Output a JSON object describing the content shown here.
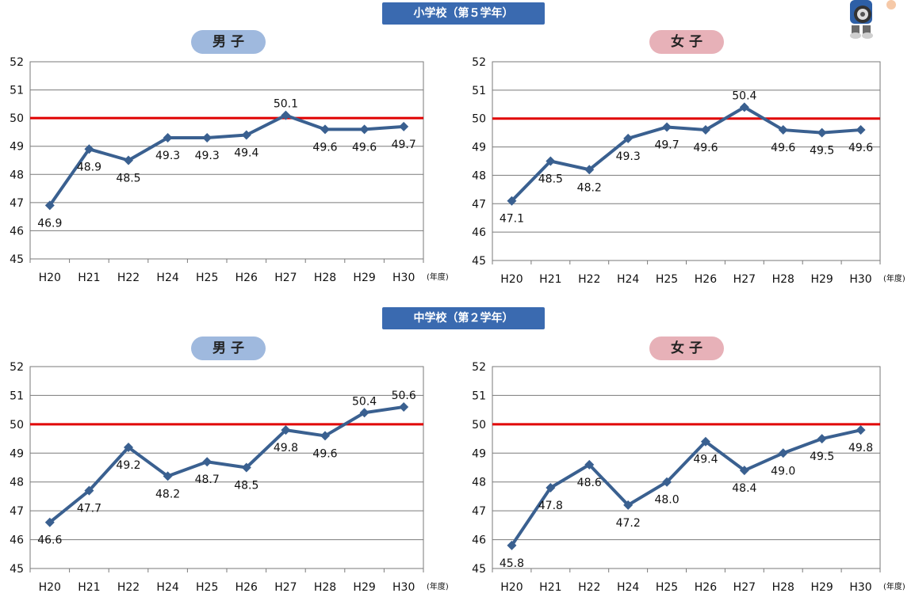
{
  "sections": [
    {
      "label": "小学校（第５学年）"
    },
    {
      "label": "中学校（第２学年）"
    }
  ],
  "gender_labels": {
    "boys": "男 子",
    "girls": "女 子"
  },
  "year_unit_label": "(年度)",
  "colors": {
    "line": "#3a6090",
    "reference_line": "#e00000",
    "grid": "#7a7a7a",
    "badge": "#3a6ab0",
    "boys_pill": "#9fb9de",
    "girls_pill": "#e7b1b8"
  },
  "chart_data": [
    {
      "type": "line",
      "section": "小学校（第５学年）",
      "gender": "男 子",
      "categories": [
        "H20",
        "H21",
        "H22",
        "H24",
        "H25",
        "H26",
        "H27",
        "H28",
        "H29",
        "H30"
      ],
      "values": [
        46.9,
        48.9,
        48.5,
        49.3,
        49.3,
        49.4,
        50.1,
        49.6,
        49.6,
        49.7
      ],
      "value_labels": [
        "46.9",
        "48.9",
        "48.5",
        "49.3",
        "49.3",
        "49.4",
        "50.1",
        "49.6",
        "49.6",
        "49.7"
      ],
      "ylim": [
        45,
        52
      ],
      "yticks": [
        "45",
        "46",
        "47",
        "48",
        "49",
        "50",
        "51",
        "52"
      ],
      "reference_value": 50,
      "grid": true
    },
    {
      "type": "line",
      "section": "小学校（第５学年）",
      "gender": "女 子",
      "categories": [
        "H20",
        "H21",
        "H22",
        "H24",
        "H25",
        "H26",
        "H27",
        "H28",
        "H29",
        "H30"
      ],
      "values": [
        47.1,
        48.5,
        48.2,
        49.3,
        49.7,
        49.6,
        50.4,
        49.6,
        49.5,
        49.6
      ],
      "value_labels": [
        "47.1",
        "48.5",
        "48.2",
        "49.3",
        "49.7",
        "49.6",
        "50.4",
        "49.6",
        "49.5",
        "49.6"
      ],
      "ylim": [
        45,
        52
      ],
      "yticks": [
        "45",
        "46",
        "47",
        "48",
        "49",
        "50",
        "51",
        "52"
      ],
      "reference_value": 50,
      "grid": true
    },
    {
      "type": "line",
      "section": "中学校（第２学年）",
      "gender": "男 子",
      "categories": [
        "H20",
        "H21",
        "H22",
        "H24",
        "H25",
        "H26",
        "H27",
        "H28",
        "H29",
        "H30"
      ],
      "values": [
        46.6,
        47.7,
        49.2,
        48.2,
        48.7,
        48.5,
        49.8,
        49.6,
        50.4,
        50.6
      ],
      "value_labels": [
        "46.6",
        "47.7",
        "49.2",
        "48.2",
        "48.7",
        "48.5",
        "49.8",
        "49.6",
        "50.4",
        "50.6"
      ],
      "ylim": [
        45,
        52
      ],
      "yticks": [
        "45",
        "46",
        "47",
        "48",
        "49",
        "50",
        "51",
        "52"
      ],
      "reference_value": 50,
      "grid": true
    },
    {
      "type": "line",
      "section": "中学校（第２学年）",
      "gender": "女 子",
      "categories": [
        "H20",
        "H21",
        "H22",
        "H24",
        "H25",
        "H26",
        "H27",
        "H28",
        "H29",
        "H30"
      ],
      "values": [
        45.8,
        47.8,
        48.6,
        47.2,
        48.0,
        49.4,
        48.4,
        49.0,
        49.5,
        49.8
      ],
      "value_labels": [
        "45.8",
        "47.8",
        "48.6",
        "47.2",
        "48.0",
        "49.4",
        "48.4",
        "49.0",
        "49.5",
        "49.8"
      ],
      "ylim": [
        45,
        52
      ],
      "yticks": [
        "45",
        "46",
        "47",
        "48",
        "49",
        "50",
        "51",
        "52"
      ],
      "reference_value": 50,
      "grid": true
    }
  ]
}
